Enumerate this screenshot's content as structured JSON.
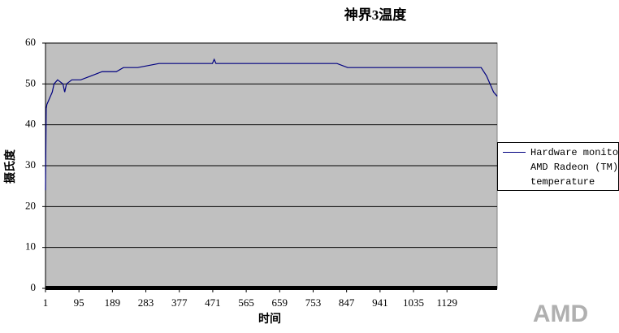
{
  "chart_data": {
    "type": "line",
    "title": "神界3温度",
    "x_label": "时间",
    "y_label": "摄氏度",
    "x": [
      1,
      3,
      5,
      10,
      20,
      25,
      35,
      50,
      55,
      60,
      75,
      100,
      130,
      160,
      200,
      220,
      260,
      320,
      470,
      475,
      480,
      700,
      820,
      850,
      1000,
      1225,
      1240,
      1250,
      1260,
      1270
    ],
    "series": [
      {
        "name": "Hardware monitor AMD Radeon (TM) temperature",
        "color": "#000080",
        "values": [
          24,
          44,
          45,
          46,
          48,
          50,
          51,
          50,
          48,
          50,
          51,
          51,
          52,
          53,
          53,
          54,
          54,
          55,
          55,
          56,
          55,
          55,
          55,
          54,
          54,
          54,
          52,
          50,
          48,
          47
        ]
      }
    ],
    "xlim": [
      1,
      1270
    ],
    "xticks": [
      1,
      95,
      189,
      283,
      377,
      471,
      565,
      659,
      753,
      847,
      941,
      1035,
      1129
    ],
    "ylim": [
      0,
      60
    ],
    "yticks": [
      0,
      10,
      20,
      30,
      40,
      50,
      60
    ],
    "grid": true,
    "logo": "AMD"
  }
}
